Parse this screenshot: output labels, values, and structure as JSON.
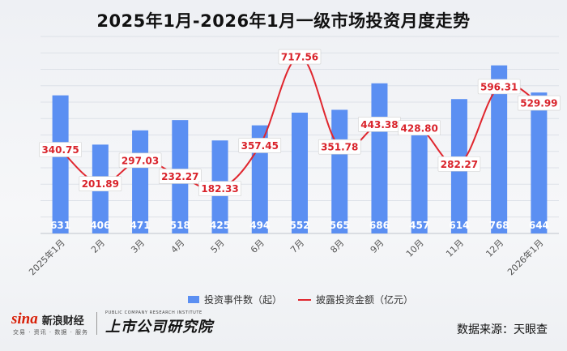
{
  "title": "2025年1月-2026年1月一级市场投资月度走势",
  "chart_data": {
    "type": "bar",
    "categories": [
      "2025年1月",
      "2月",
      "3月",
      "4月",
      "5月",
      "6月",
      "7月",
      "8月",
      "9月",
      "10月",
      "11月",
      "12月",
      "2026年1月"
    ],
    "series": [
      {
        "name": "投资事件数（起）",
        "type": "bar",
        "axis": "left",
        "values": [
          631,
          406,
          471,
          518,
          425,
          494,
          552,
          565,
          686,
          457,
          614,
          768,
          644
        ]
      },
      {
        "name": "披露投资金额（亿元）",
        "type": "line",
        "axis": "right",
        "values": [
          340.75,
          201.89,
          297.03,
          232.27,
          182.33,
          357.45,
          717.56,
          351.78,
          443.38,
          428.8,
          282.27,
          596.31,
          529.99
        ]
      }
    ],
    "value_labels_bar": [
      "631",
      "406",
      "471",
      "518",
      "425",
      "494",
      "552",
      "565",
      "686",
      "457",
      "614",
      "768",
      "644"
    ],
    "value_labels_line": [
      "340.75",
      "201.89",
      "297.03",
      "232.27",
      "182.33",
      "357.45",
      "717.56",
      "351.78",
      "443.38",
      "428.80",
      "282.27",
      "596.31",
      "529.99"
    ],
    "ylim_left": [
      0,
      900
    ],
    "ylim_right": [
      0,
      800
    ],
    "grid": true,
    "legend": "bottom",
    "colors": {
      "bar": "#5b8ff2",
      "line": "#e0262e"
    }
  },
  "footer": {
    "sina_logo": "sina",
    "sina_name": "新浪财经",
    "sina_sub": "交易 · 资讯 · 数据 · 服务",
    "institute_name": "上市公司研究院",
    "institute_en": "PUBLIC COMPANY RESEARCH INSTITUTE",
    "source": "数据来源：天眼查"
  }
}
